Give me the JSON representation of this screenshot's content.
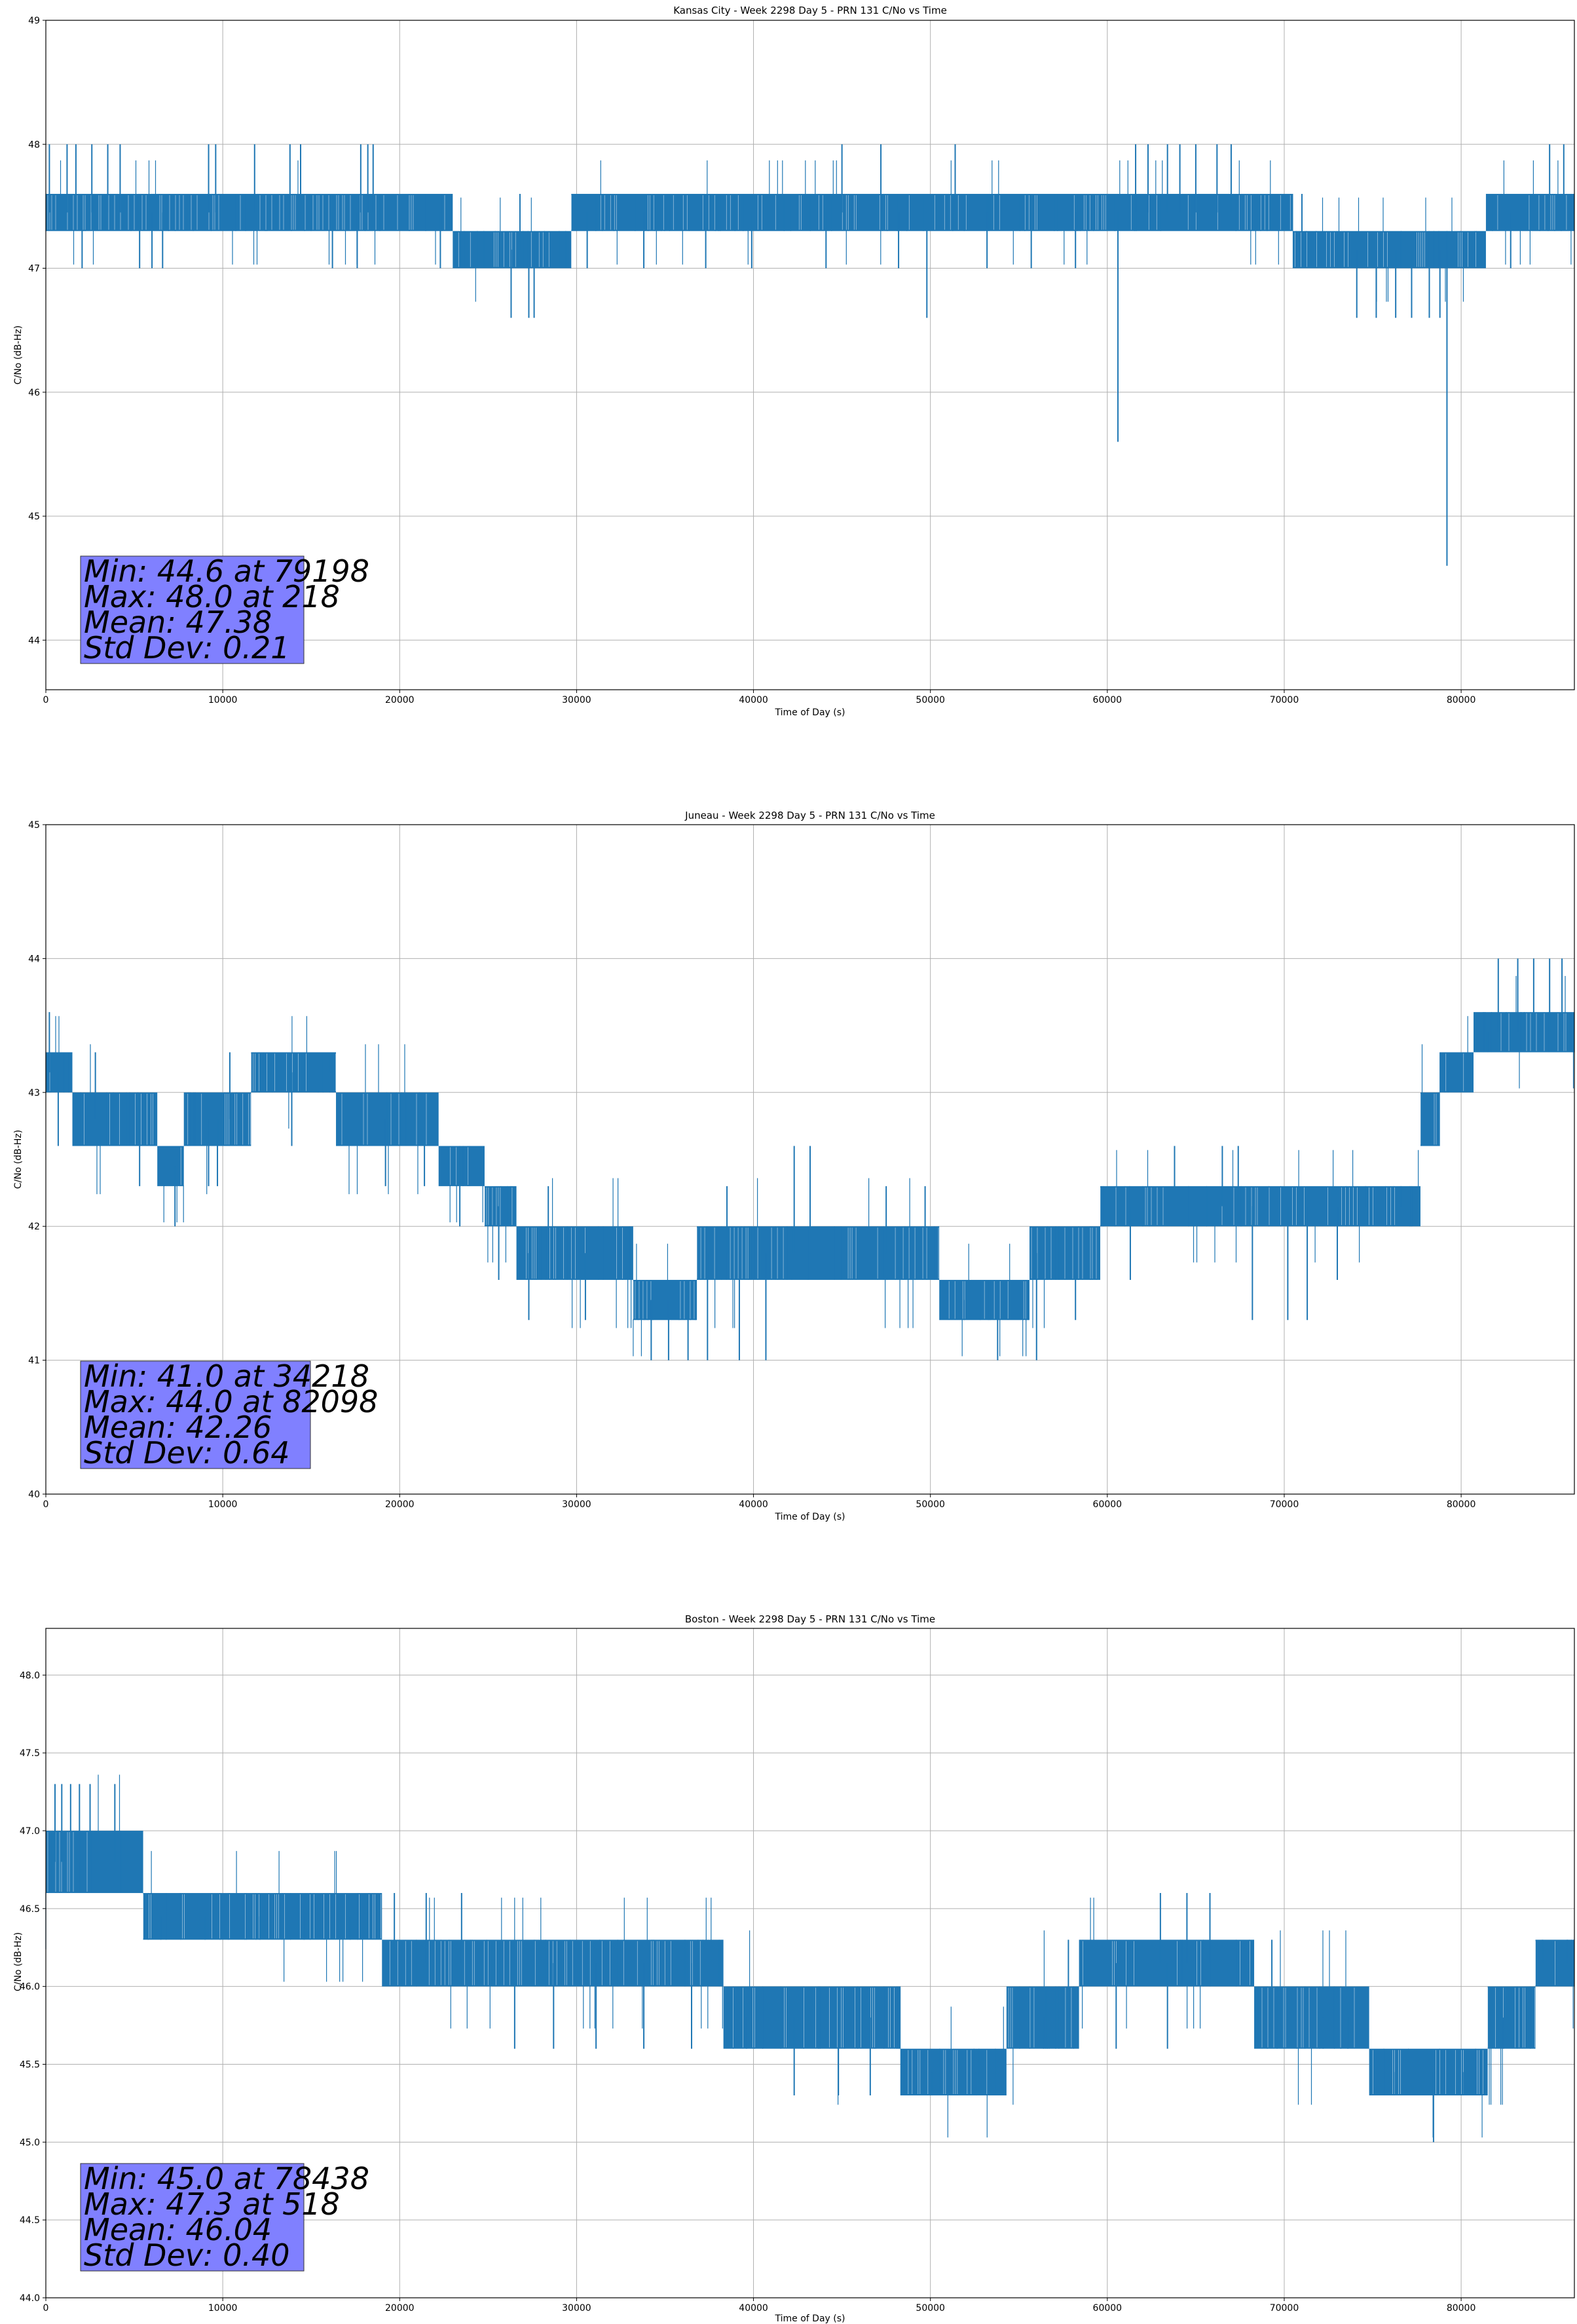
{
  "figure": {
    "series_color": "#1f77b4",
    "stats_box_color": "#8080ff"
  },
  "chart_data": [
    {
      "type": "line",
      "title": "Kansas City - Week 2298 Day 5 - PRN 131 C/No vs Time",
      "xlabel": "Time of Day (s)",
      "ylabel": "C/No (dB-Hz)",
      "xlim": [
        0,
        86400
      ],
      "ylim": [
        43.6,
        49.0
      ],
      "xticks": [
        0,
        10000,
        20000,
        30000,
        40000,
        50000,
        60000,
        70000,
        80000
      ],
      "yticks": [
        44,
        45,
        46,
        47,
        48,
        49
      ],
      "ytick_labels": [
        "44",
        "45",
        "46",
        "47",
        "48",
        "49"
      ],
      "grid": true,
      "stats": [
        "Min: 44.6 at 79198",
        "Max: 48.0 at 218",
        "Mean: 47.38",
        "Std Dev: 0.21"
      ],
      "band_segments": [
        {
          "x": [
            0,
            23000
          ],
          "low": 47.3,
          "high": 47.6
        },
        {
          "x": [
            23000,
            29700
          ],
          "low": 47.0,
          "high": 47.3
        },
        {
          "x": [
            29700,
            70500
          ],
          "low": 47.3,
          "high": 47.6
        },
        {
          "x": [
            70500,
            81400
          ],
          "low": 47.0,
          "high": 47.3
        },
        {
          "x": [
            81400,
            86400
          ],
          "low": 47.3,
          "high": 47.6
        }
      ],
      "spikes": [
        [
          200,
          48.0
        ],
        [
          1200,
          48.0
        ],
        [
          1700,
          48.0
        ],
        [
          2600,
          48.0
        ],
        [
          2050,
          47.0
        ],
        [
          2700,
          47.6
        ],
        [
          3500,
          48.0
        ],
        [
          4200,
          48.0
        ],
        [
          5300,
          47.0
        ],
        [
          6000,
          47.0
        ],
        [
          6600,
          47.0
        ],
        [
          9200,
          48.0
        ],
        [
          9600,
          48.0
        ],
        [
          11800,
          48.0
        ],
        [
          13800,
          48.0
        ],
        [
          14400,
          48.0
        ],
        [
          16200,
          47.0
        ],
        [
          17600,
          47.0
        ],
        [
          17800,
          48.0
        ],
        [
          18200,
          48.0
        ],
        [
          18500,
          48.0
        ],
        [
          22300,
          47.0
        ],
        [
          26300,
          46.6
        ],
        [
          27300,
          46.6
        ],
        [
          27600,
          46.6
        ],
        [
          26800,
          47.6
        ],
        [
          30600,
          47.0
        ],
        [
          33800,
          47.0
        ],
        [
          37300,
          47.0
        ],
        [
          39900,
          47.0
        ],
        [
          44100,
          47.0
        ],
        [
          48200,
          47.0
        ],
        [
          49800,
          46.6
        ],
        [
          45000,
          48.0
        ],
        [
          47200,
          48.0
        ],
        [
          51400,
          48.0
        ],
        [
          53200,
          47.0
        ],
        [
          55700,
          47.0
        ],
        [
          58200,
          47.0
        ],
        [
          60600,
          45.6
        ],
        [
          61600,
          48.0
        ],
        [
          62300,
          48.0
        ],
        [
          63400,
          48.0
        ],
        [
          64100,
          48.0
        ],
        [
          65000,
          48.0
        ],
        [
          66200,
          48.0
        ],
        [
          67000,
          48.0
        ],
        [
          71000,
          47.6
        ],
        [
          74100,
          46.6
        ],
        [
          75200,
          46.6
        ],
        [
          76300,
          46.6
        ],
        [
          77200,
          46.6
        ],
        [
          78200,
          46.6
        ],
        [
          78800,
          46.6
        ],
        [
          79198,
          44.6
        ],
        [
          82800,
          47.0
        ],
        [
          85000,
          48.0
        ],
        [
          85800,
          48.0
        ],
        [
          86300,
          47.6
        ]
      ]
    },
    {
      "type": "line",
      "title": "Juneau - Week 2298 Day 5 - PRN 131 C/No vs Time",
      "xlabel": "Time of Day (s)",
      "ylabel": "C/No (dB-Hz)",
      "xlim": [
        0,
        86400
      ],
      "ylim": [
        40.0,
        45.0
      ],
      "xticks": [
        0,
        10000,
        20000,
        30000,
        40000,
        50000,
        60000,
        70000,
        80000
      ],
      "yticks": [
        40,
        41,
        42,
        43,
        44,
        45
      ],
      "ytick_labels": [
        "40",
        "41",
        "42",
        "43",
        "44",
        "45"
      ],
      "grid": true,
      "stats": [
        "Min: 41.0 at 34218",
        "Max: 44.0 at 82098",
        "Mean: 42.26",
        "Std Dev: 0.64"
      ],
      "band_segments": [
        {
          "x": [
            0,
            1500
          ],
          "low": 43.0,
          "high": 43.3
        },
        {
          "x": [
            1500,
            6300
          ],
          "low": 42.6,
          "high": 43.0
        },
        {
          "x": [
            6300,
            7800
          ],
          "low": 42.3,
          "high": 42.6
        },
        {
          "x": [
            7800,
            11600
          ],
          "low": 42.6,
          "high": 43.0
        },
        {
          "x": [
            11600,
            16400
          ],
          "low": 43.0,
          "high": 43.3
        },
        {
          "x": [
            16400,
            22200
          ],
          "low": 42.6,
          "high": 43.0
        },
        {
          "x": [
            22200,
            24800
          ],
          "low": 42.3,
          "high": 42.6
        },
        {
          "x": [
            24800,
            26600
          ],
          "low": 42.0,
          "high": 42.3
        },
        {
          "x": [
            26600,
            33200
          ],
          "low": 41.6,
          "high": 42.0
        },
        {
          "x": [
            33200,
            36800
          ],
          "low": 41.3,
          "high": 41.6
        },
        {
          "x": [
            36800,
            50500
          ],
          "low": 41.6,
          "high": 42.0
        },
        {
          "x": [
            50500,
            55600
          ],
          "low": 41.3,
          "high": 41.6
        },
        {
          "x": [
            55600,
            59600
          ],
          "low": 41.6,
          "high": 42.0
        },
        {
          "x": [
            59600,
            69800
          ],
          "low": 42.0,
          "high": 42.3
        },
        {
          "x": [
            69800,
            77700
          ],
          "low": 42.0,
          "high": 42.3
        },
        {
          "x": [
            77700,
            78800
          ],
          "low": 42.6,
          "high": 43.0
        },
        {
          "x": [
            78800,
            80700
          ],
          "low": 43.0,
          "high": 43.3
        },
        {
          "x": [
            80700,
            86400
          ],
          "low": 43.3,
          "high": 43.6
        }
      ],
      "spikes": [
        [
          200,
          43.6
        ],
        [
          700,
          42.6
        ],
        [
          2800,
          43.3
        ],
        [
          5300,
          42.3
        ],
        [
          6700,
          42.3
        ],
        [
          7300,
          42.0
        ],
        [
          9200,
          42.3
        ],
        [
          9700,
          42.3
        ],
        [
          10400,
          43.3
        ],
        [
          12300,
          43.3
        ],
        [
          13900,
          42.6
        ],
        [
          16100,
          43.3
        ],
        [
          19200,
          42.3
        ],
        [
          21400,
          42.3
        ],
        [
          23400,
          42.0
        ],
        [
          25600,
          41.6
        ],
        [
          27300,
          41.3
        ],
        [
          28400,
          42.3
        ],
        [
          30500,
          41.3
        ],
        [
          34218,
          41.0
        ],
        [
          35200,
          41.0
        ],
        [
          36300,
          41.0
        ],
        [
          37400,
          41.0
        ],
        [
          39200,
          41.0
        ],
        [
          38500,
          42.3
        ],
        [
          40700,
          41.0
        ],
        [
          42300,
          42.6
        ],
        [
          43200,
          42.6
        ],
        [
          47500,
          42.3
        ],
        [
          49700,
          42.3
        ],
        [
          51900,
          41.3
        ],
        [
          53800,
          41.0
        ],
        [
          56000,
          41.0
        ],
        [
          58200,
          41.3
        ],
        [
          61300,
          41.6
        ],
        [
          63800,
          42.6
        ],
        [
          66500,
          42.6
        ],
        [
          67400,
          42.6
        ],
        [
          68200,
          41.3
        ],
        [
          70200,
          41.3
        ],
        [
          71300,
          41.3
        ],
        [
          73000,
          41.6
        ],
        [
          74600,
          42.3
        ],
        [
          76600,
          42.3
        ],
        [
          79300,
          43.3
        ],
        [
          81500,
          43.3
        ],
        [
          82098,
          44.0
        ],
        [
          83200,
          44.0
        ],
        [
          84100,
          44.0
        ],
        [
          85000,
          44.0
        ],
        [
          85700,
          44.0
        ]
      ]
    },
    {
      "type": "line",
      "title": "Boston - Week 2298 Day 5 - PRN 131 C/No vs Time",
      "xlabel": "Time of Day (s)",
      "ylabel": "C/No (dB-Hz)",
      "xlim": [
        0,
        86400
      ],
      "ylim": [
        44.0,
        48.3
      ],
      "xticks": [
        0,
        10000,
        20000,
        30000,
        40000,
        50000,
        60000,
        70000,
        80000
      ],
      "yticks": [
        44.0,
        44.5,
        45.0,
        45.5,
        46.0,
        46.5,
        47.0,
        47.5,
        48.0
      ],
      "ytick_labels": [
        "44.0",
        "44.5",
        "45.0",
        "45.5",
        "46.0",
        "46.5",
        "47.0",
        "47.5",
        "48.0"
      ],
      "grid": true,
      "stats": [
        "Min: 45.0 at 78438",
        "Max: 47.3 at 518",
        "Mean: 46.04",
        "Std Dev: 0.40"
      ],
      "band_segments": [
        {
          "x": [
            0,
            5500
          ],
          "low": 46.6,
          "high": 47.0
        },
        {
          "x": [
            5500,
            19000
          ],
          "low": 46.3,
          "high": 46.6
        },
        {
          "x": [
            19000,
            38300
          ],
          "low": 46.0,
          "high": 46.3
        },
        {
          "x": [
            38300,
            48300
          ],
          "low": 45.6,
          "high": 46.0
        },
        {
          "x": [
            48300,
            54300
          ],
          "low": 45.3,
          "high": 45.6
        },
        {
          "x": [
            54300,
            58400
          ],
          "low": 45.6,
          "high": 46.0
        },
        {
          "x": [
            58400,
            68300
          ],
          "low": 46.0,
          "high": 46.3
        },
        {
          "x": [
            68300,
            74800
          ],
          "low": 45.6,
          "high": 46.0
        },
        {
          "x": [
            74800,
            81500
          ],
          "low": 45.3,
          "high": 45.6
        },
        {
          "x": [
            81500,
            84200
          ],
          "low": 45.6,
          "high": 46.0
        },
        {
          "x": [
            84200,
            86400
          ],
          "low": 46.0,
          "high": 46.3
        }
      ],
      "spikes": [
        [
          518,
          47.3
        ],
        [
          900,
          47.3
        ],
        [
          1400,
          47.3
        ],
        [
          1900,
          47.3
        ],
        [
          2500,
          47.3
        ],
        [
          3900,
          47.3
        ],
        [
          6500,
          46.3
        ],
        [
          7600,
          46.6
        ],
        [
          9000,
          46.3
        ],
        [
          12100,
          46.3
        ],
        [
          14600,
          46.3
        ],
        [
          17200,
          46.3
        ],
        [
          19700,
          46.6
        ],
        [
          21500,
          46.6
        ],
        [
          23500,
          46.6
        ],
        [
          26500,
          45.6
        ],
        [
          28700,
          45.6
        ],
        [
          31100,
          45.6
        ],
        [
          33800,
          45.6
        ],
        [
          36500,
          45.6
        ],
        [
          39600,
          45.6
        ],
        [
          42300,
          45.3
        ],
        [
          44800,
          45.3
        ],
        [
          46600,
          45.3
        ],
        [
          50100,
          45.3
        ],
        [
          52600,
          45.3
        ],
        [
          56400,
          45.6
        ],
        [
          57800,
          46.3
        ],
        [
          60500,
          45.6
        ],
        [
          63400,
          45.6
        ],
        [
          63000,
          46.6
        ],
        [
          64500,
          46.6
        ],
        [
          65800,
          46.6
        ],
        [
          69300,
          46.3
        ],
        [
          72200,
          45.6
        ],
        [
          73600,
          45.6
        ],
        [
          76200,
          45.3
        ],
        [
          78438,
          45.0
        ],
        [
          80100,
          45.3
        ],
        [
          82400,
          45.6
        ],
        [
          84600,
          46.3
        ],
        [
          86000,
          46.3
        ]
      ]
    }
  ]
}
